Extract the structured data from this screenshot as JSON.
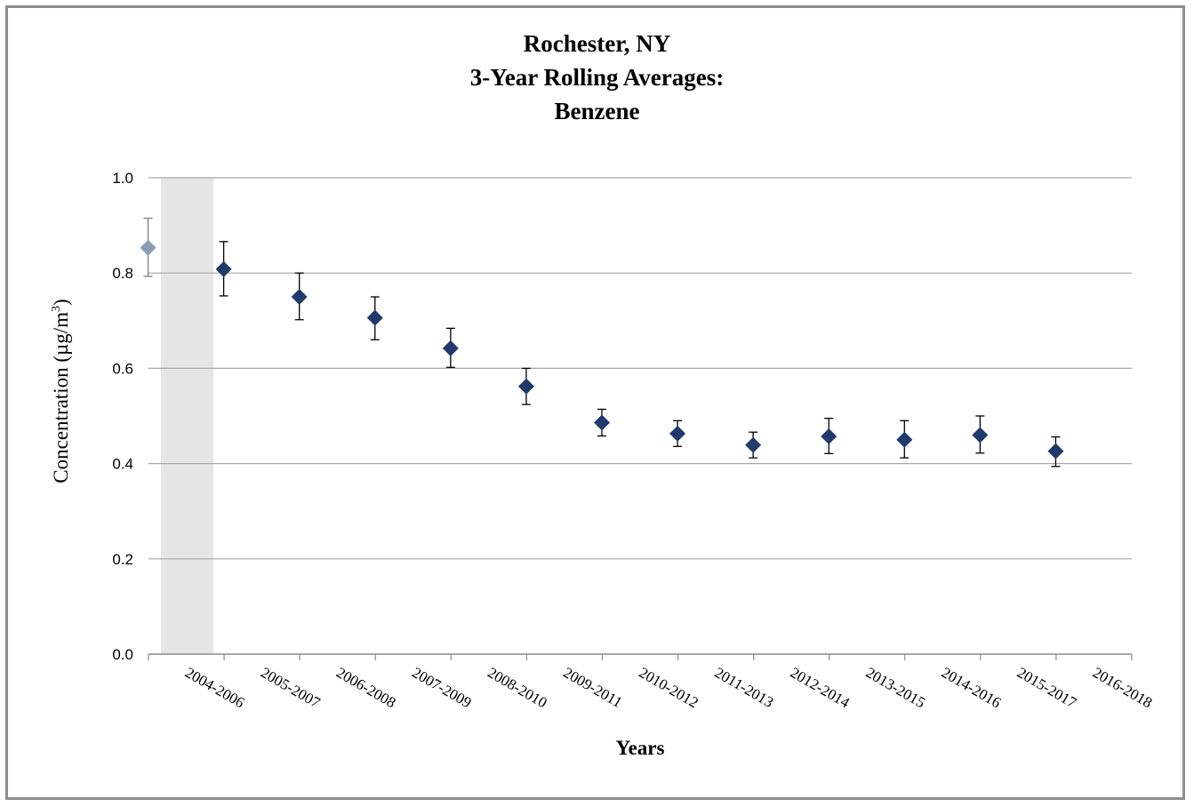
{
  "chart_data": {
    "type": "scatter",
    "title_lines": [
      "Rochester, NY",
      "3-Year Rolling Averages:",
      "Benzene"
    ],
    "xlabel": "Years",
    "ylabel_prefix": "Concentration (µg/m",
    "ylabel_sup": "3",
    "ylabel_suffix": ")",
    "ylim": [
      0,
      1.0
    ],
    "yticks": [
      "0.0",
      "0.2",
      "0.4",
      "0.6",
      "0.8",
      "1.0"
    ],
    "grid": true,
    "categories": [
      "2004-2006",
      "2005-2007",
      "2006-2008",
      "2007-2009",
      "2008-2010",
      "2009-2011",
      "2010-2012",
      "2011-2013",
      "2012-2014",
      "2013-2015",
      "2014-2016",
      "2015-2017",
      "2016-2018"
    ],
    "series": [
      {
        "values": [
          0.853,
          0.808,
          0.75,
          0.706,
          0.642,
          0.562,
          0.486,
          0.463,
          0.439,
          0.457,
          0.45,
          0.46,
          0.426
        ],
        "error_low": [
          0.793,
          0.752,
          0.702,
          0.66,
          0.602,
          0.524,
          0.458,
          0.436,
          0.412,
          0.421,
          0.412,
          0.422,
          0.394
        ],
        "error_high": [
          0.915,
          0.866,
          0.8,
          0.75,
          0.684,
          0.6,
          0.514,
          0.49,
          0.466,
          0.495,
          0.49,
          0.5,
          0.456
        ]
      }
    ],
    "highlighted_category": "2004-2006",
    "colors": {
      "marker": "#1f3a6b",
      "highlight_marker": "#8a9bb5",
      "highlight_band": "#e6e6e6",
      "gridline": "#a6a6a6",
      "errorbar": "#000000",
      "highlight_errorbar": "#7f7f7f"
    }
  }
}
